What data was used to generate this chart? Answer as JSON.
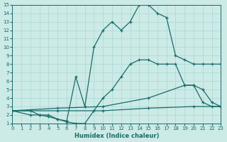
{
  "xlabel": "Humidex (Indice chaleur)",
  "bg_color": "#cceae6",
  "grid_color": "#aad8d4",
  "line_color": "#1a6b6b",
  "xlim": [
    0,
    23
  ],
  "ylim": [
    1,
    15
  ],
  "xticks": [
    0,
    1,
    2,
    3,
    4,
    5,
    6,
    7,
    8,
    9,
    10,
    11,
    12,
    13,
    14,
    15,
    16,
    17,
    18,
    19,
    20,
    21,
    22,
    23
  ],
  "yticks": [
    1,
    2,
    3,
    4,
    5,
    6,
    7,
    8,
    9,
    10,
    11,
    12,
    13,
    14,
    15
  ],
  "line1_x": [
    0,
    2,
    3,
    4,
    5,
    6,
    7,
    8,
    9,
    10,
    11,
    12,
    13,
    14,
    15,
    16,
    17,
    18,
    19,
    20,
    21,
    22,
    23
  ],
  "line1_y": [
    2.5,
    2.0,
    2.0,
    1.8,
    1.5,
    1.2,
    1.0,
    1.0,
    2.5,
    4.0,
    5.0,
    6.5,
    8.0,
    8.5,
    8.5,
    8.0,
    8.0,
    8.0,
    5.5,
    5.5,
    3.5,
    3.0,
    3.0
  ],
  "line2_x": [
    0,
    2,
    3,
    4,
    5,
    6,
    7,
    8,
    9,
    10,
    11,
    12,
    13,
    14,
    15,
    16,
    17,
    18,
    19,
    20,
    21,
    22,
    23
  ],
  "line2_y": [
    2.5,
    2.5,
    2.0,
    2.0,
    1.5,
    1.3,
    6.5,
    3.0,
    10.0,
    12.0,
    13.0,
    12.0,
    13.0,
    15.0,
    15.0,
    14.0,
    13.5,
    9.0,
    8.5,
    8.0,
    8.0,
    8.0,
    8.0
  ],
  "line3_x": [
    0,
    5,
    10,
    15,
    19,
    20,
    21,
    22,
    23
  ],
  "line3_y": [
    2.5,
    2.8,
    3.0,
    4.0,
    5.5,
    5.5,
    5.0,
    3.5,
    3.0
  ],
  "line4_x": [
    0,
    5,
    10,
    15,
    20,
    23
  ],
  "line4_y": [
    2.5,
    2.5,
    2.5,
    2.8,
    3.0,
    3.0
  ]
}
